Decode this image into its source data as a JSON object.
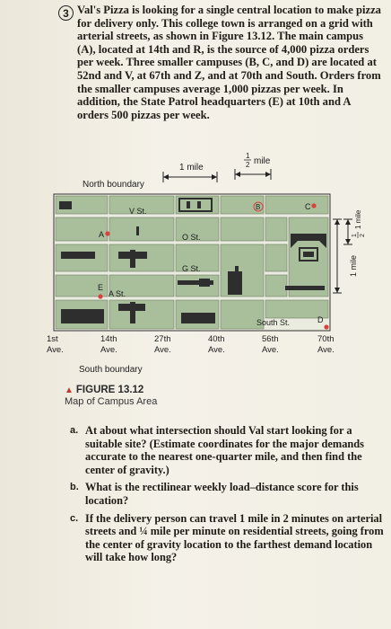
{
  "problem": {
    "number": "3",
    "text": "Val's Pizza is looking for a single central location to make pizza for delivery only. This college town is arranged on a grid with arterial streets, as shown in Figure 13.12. The main campus (A), located at 14th and R, is the source of 4,000 pizza orders per week. Three smaller campuses (B, C, and D) are located at 52nd and V, at 67th and Z, and at 70th and South. Orders from the smaller campuses average 1,000 pizzas per week. In addition, the State Patrol headquarters (E) at 10th and A orders 500 pizzas per week."
  },
  "map": {
    "north_boundary": "North boundary",
    "south_boundary": "South boundary",
    "scale_1mile": "1 mile",
    "scale_half_num": "1",
    "scale_half_den": "2",
    "scale_half_unit": "mile",
    "right_scale_1mile": "1 mile",
    "right_scale_half": "1 mile",
    "right_scale_half_num": "1",
    "right_scale_half_den": "2",
    "streets": {
      "v": "V St.",
      "o": "O St.",
      "g": "G St.",
      "a": "A St.",
      "south": "South St."
    },
    "avenues": [
      {
        "num": "1st",
        "ave": "Ave."
      },
      {
        "num": "14th",
        "ave": "Ave."
      },
      {
        "num": "27th",
        "ave": "Ave."
      },
      {
        "num": "40th",
        "ave": "Ave."
      },
      {
        "num": "56th",
        "ave": "Ave."
      },
      {
        "num": "70th",
        "ave": "Ave."
      }
    ],
    "locations": {
      "a": "A",
      "b": "B",
      "c": "C",
      "d": "D",
      "e": "E"
    },
    "colors": {
      "block": "#a9bf9c",
      "street": "#e9ecde",
      "marker": "#d8423f",
      "building": "#2e2e2e"
    }
  },
  "figure": {
    "label": "FIGURE 13.12",
    "caption": "Map of Campus Area"
  },
  "questions": [
    {
      "label": "a.",
      "text": "At about what intersection should Val start looking for a suitable site? (Estimate coordinates for the major demands accurate to the nearest one-quarter mile, and then find the center of gravity.)"
    },
    {
      "label": "b.",
      "text": "What is the rectilinear weekly load–distance score for this location?"
    },
    {
      "label": "c.",
      "text": "If the delivery person can travel 1 mile in 2 minutes on arterial streets and ¼ mile per minute on residential streets, going from the center of gravity location to the farthest demand location will take how long?"
    }
  ]
}
